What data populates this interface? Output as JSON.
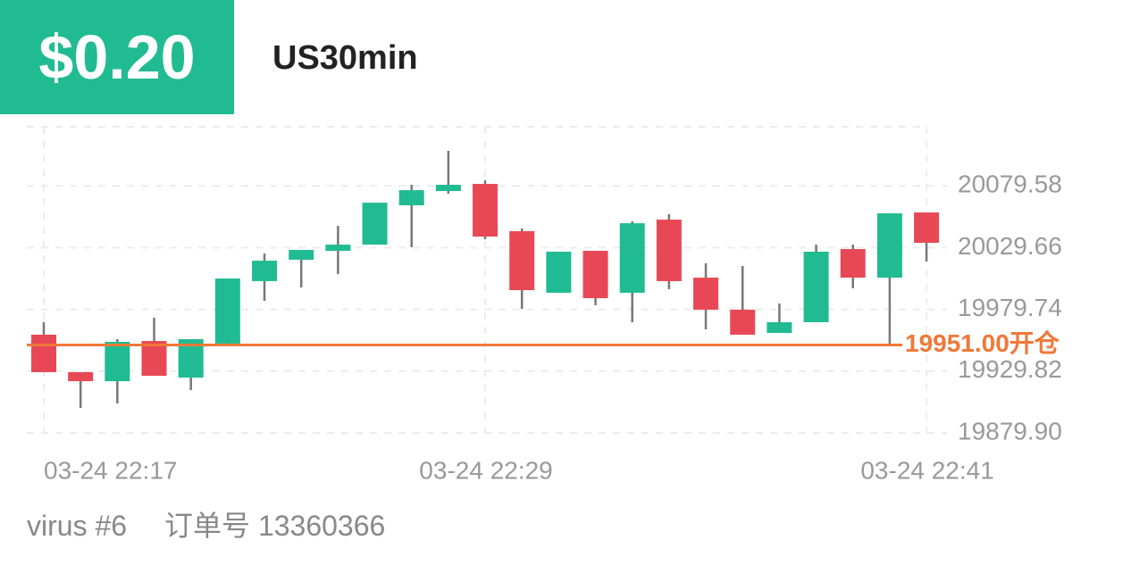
{
  "header": {
    "price": "$0.20",
    "symbol": "US30min"
  },
  "chart_data": {
    "type": "candlestick",
    "categories": [
      "03-24 22:17",
      null,
      null,
      null,
      null,
      null,
      null,
      null,
      null,
      null,
      null,
      null,
      "03-24 22:29",
      null,
      null,
      null,
      null,
      null,
      null,
      null,
      null,
      null,
      null,
      null,
      "03-24 22:41"
    ],
    "open": [
      19959.3,
      19929.0,
      19921.7,
      19954.2,
      19924.6,
      19952.1,
      20002.6,
      20019.9,
      20027.1,
      20032.1,
      20063.9,
      20075.4,
      20081.2,
      20043.0,
      19993.2,
      20027.1,
      19993.2,
      20052.3,
      20005.4,
      19979.5,
      19960.7,
      19969.4,
      20028.5,
      20005.4,
      20058.1
    ],
    "high": [
      19969.4,
      19929.0,
      19955.7,
      19973.0,
      19955.7,
      20004.7,
      20024.9,
      20027.8,
      20047.3,
      20066.0,
      20080.5,
      20107.9,
      20084.1,
      20045.1,
      20026.4,
      20027.1,
      20050.9,
      20056.7,
      20017.0,
      20014.8,
      19984.5,
      20032.1,
      20032.1,
      20057.4,
      20058.1
    ],
    "low": [
      19929.0,
      19900.1,
      19903.7,
      19926.1,
      19914.5,
      19950.6,
      19986.7,
      19997.5,
      20008.3,
      20032.1,
      20030.0,
      20073.3,
      20036.5,
      19980.2,
      19993.2,
      19983.1,
      19969.4,
      19996.1,
      19963.6,
      19959.3,
      19960.7,
      19969.4,
      19996.8,
      19949.9,
      20018.4
    ],
    "close": [
      19929.0,
      19921.7,
      19953.5,
      19926.1,
      19955.7,
      20004.7,
      20019.1,
      20027.8,
      20032.1,
      20066.0,
      20076.1,
      20080.5,
      20038.6,
      19995.3,
      20026.4,
      19988.8,
      20049.4,
      20002.6,
      19979.5,
      19959.3,
      19969.4,
      20026.4,
      20005.4,
      20057.4,
      20033.6
    ],
    "up_color": "#20bb92",
    "down_color": "#e84855",
    "wick_color": "#777777",
    "ylim": [
      19879.9,
      20127.4
    ],
    "yticks": [
      {
        "value": 20079.58,
        "label": "20079.58"
      },
      {
        "value": 20029.66,
        "label": "20029.66"
      },
      {
        "value": 19979.74,
        "label": "19979.74"
      },
      {
        "value": 19929.82,
        "label": "19929.82"
      },
      {
        "value": 19879.9,
        "label": "19879.90"
      }
    ],
    "grid": true,
    "order_line": {
      "value": 19951.0,
      "label": "19951.00开仓",
      "color": "#f07838"
    }
  },
  "footer": {
    "user": "virus #6",
    "order": "订单号 13360366"
  }
}
